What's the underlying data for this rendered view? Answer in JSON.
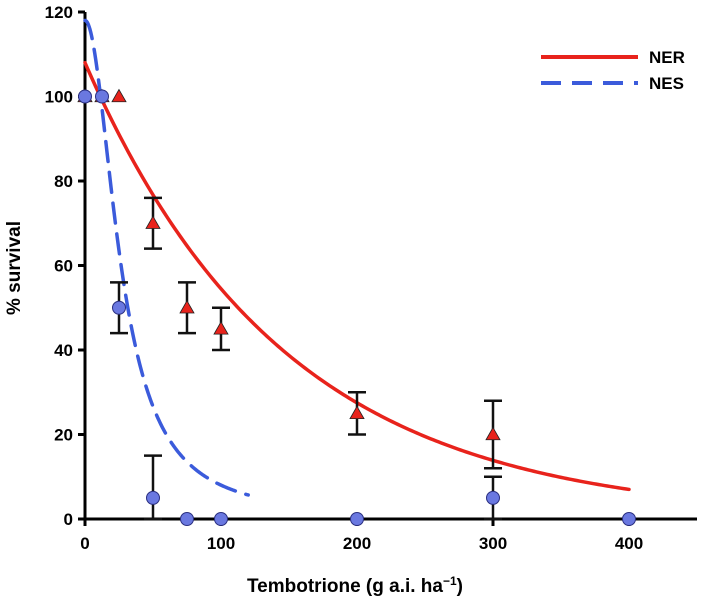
{
  "chart_data": {
    "type": "scatter",
    "xlabel": "Tembotrione (g a.i. ha",
    "xlabel_sup": "−1",
    "xlabel_close": ")",
    "ylabel": "% survival",
    "xlim": [
      0,
      450
    ],
    "ylim": [
      0,
      120
    ],
    "xticks": [
      "0",
      "100",
      "200",
      "300",
      "400"
    ],
    "yticks": [
      "0",
      "20",
      "40",
      "60",
      "80",
      "100",
      "120"
    ],
    "grid": false,
    "legend_position": "top-right",
    "series": [
      {
        "name": "NER",
        "color": "#e8231c",
        "marker": "triangle",
        "line_style": "solid",
        "points": [
          {
            "x": 0,
            "y": 100,
            "err": 0
          },
          {
            "x": 12.5,
            "y": 100,
            "err": 0
          },
          {
            "x": 25,
            "y": 100,
            "err": 0
          },
          {
            "x": 50,
            "y": 70,
            "err": 6
          },
          {
            "x": 75,
            "y": 50,
            "err": 6
          },
          {
            "x": 100,
            "y": 45,
            "err": 5
          },
          {
            "x": 200,
            "y": 25,
            "err": 5
          },
          {
            "x": 300,
            "y": 20,
            "err": 8
          }
        ],
        "fit": {
          "model": "exponential",
          "top": 108,
          "rate": 0.00684,
          "x_range": [
            0,
            400
          ]
        }
      },
      {
        "name": "NES",
        "color": "#3b5bdb",
        "marker_color": "#6a78e0",
        "marker": "circle",
        "line_style": "dashed",
        "points": [
          {
            "x": 0,
            "y": 100,
            "err": 0
          },
          {
            "x": 12.5,
            "y": 100,
            "err": 0
          },
          {
            "x": 25,
            "y": 50,
            "err": 6
          },
          {
            "x": 50,
            "y": 5,
            "err": 10
          },
          {
            "x": 75,
            "y": 0,
            "err": 0
          },
          {
            "x": 100,
            "y": 0,
            "err": 0
          },
          {
            "x": 200,
            "y": 0,
            "err": 0
          },
          {
            "x": 300,
            "y": 5,
            "err": 5
          },
          {
            "x": 400,
            "y": 0,
            "err": 0
          }
        ],
        "fit": {
          "model": "logistic",
          "top": 118,
          "ed50": 27,
          "slope": 2.0,
          "x_range": [
            0,
            120
          ]
        }
      }
    ]
  }
}
